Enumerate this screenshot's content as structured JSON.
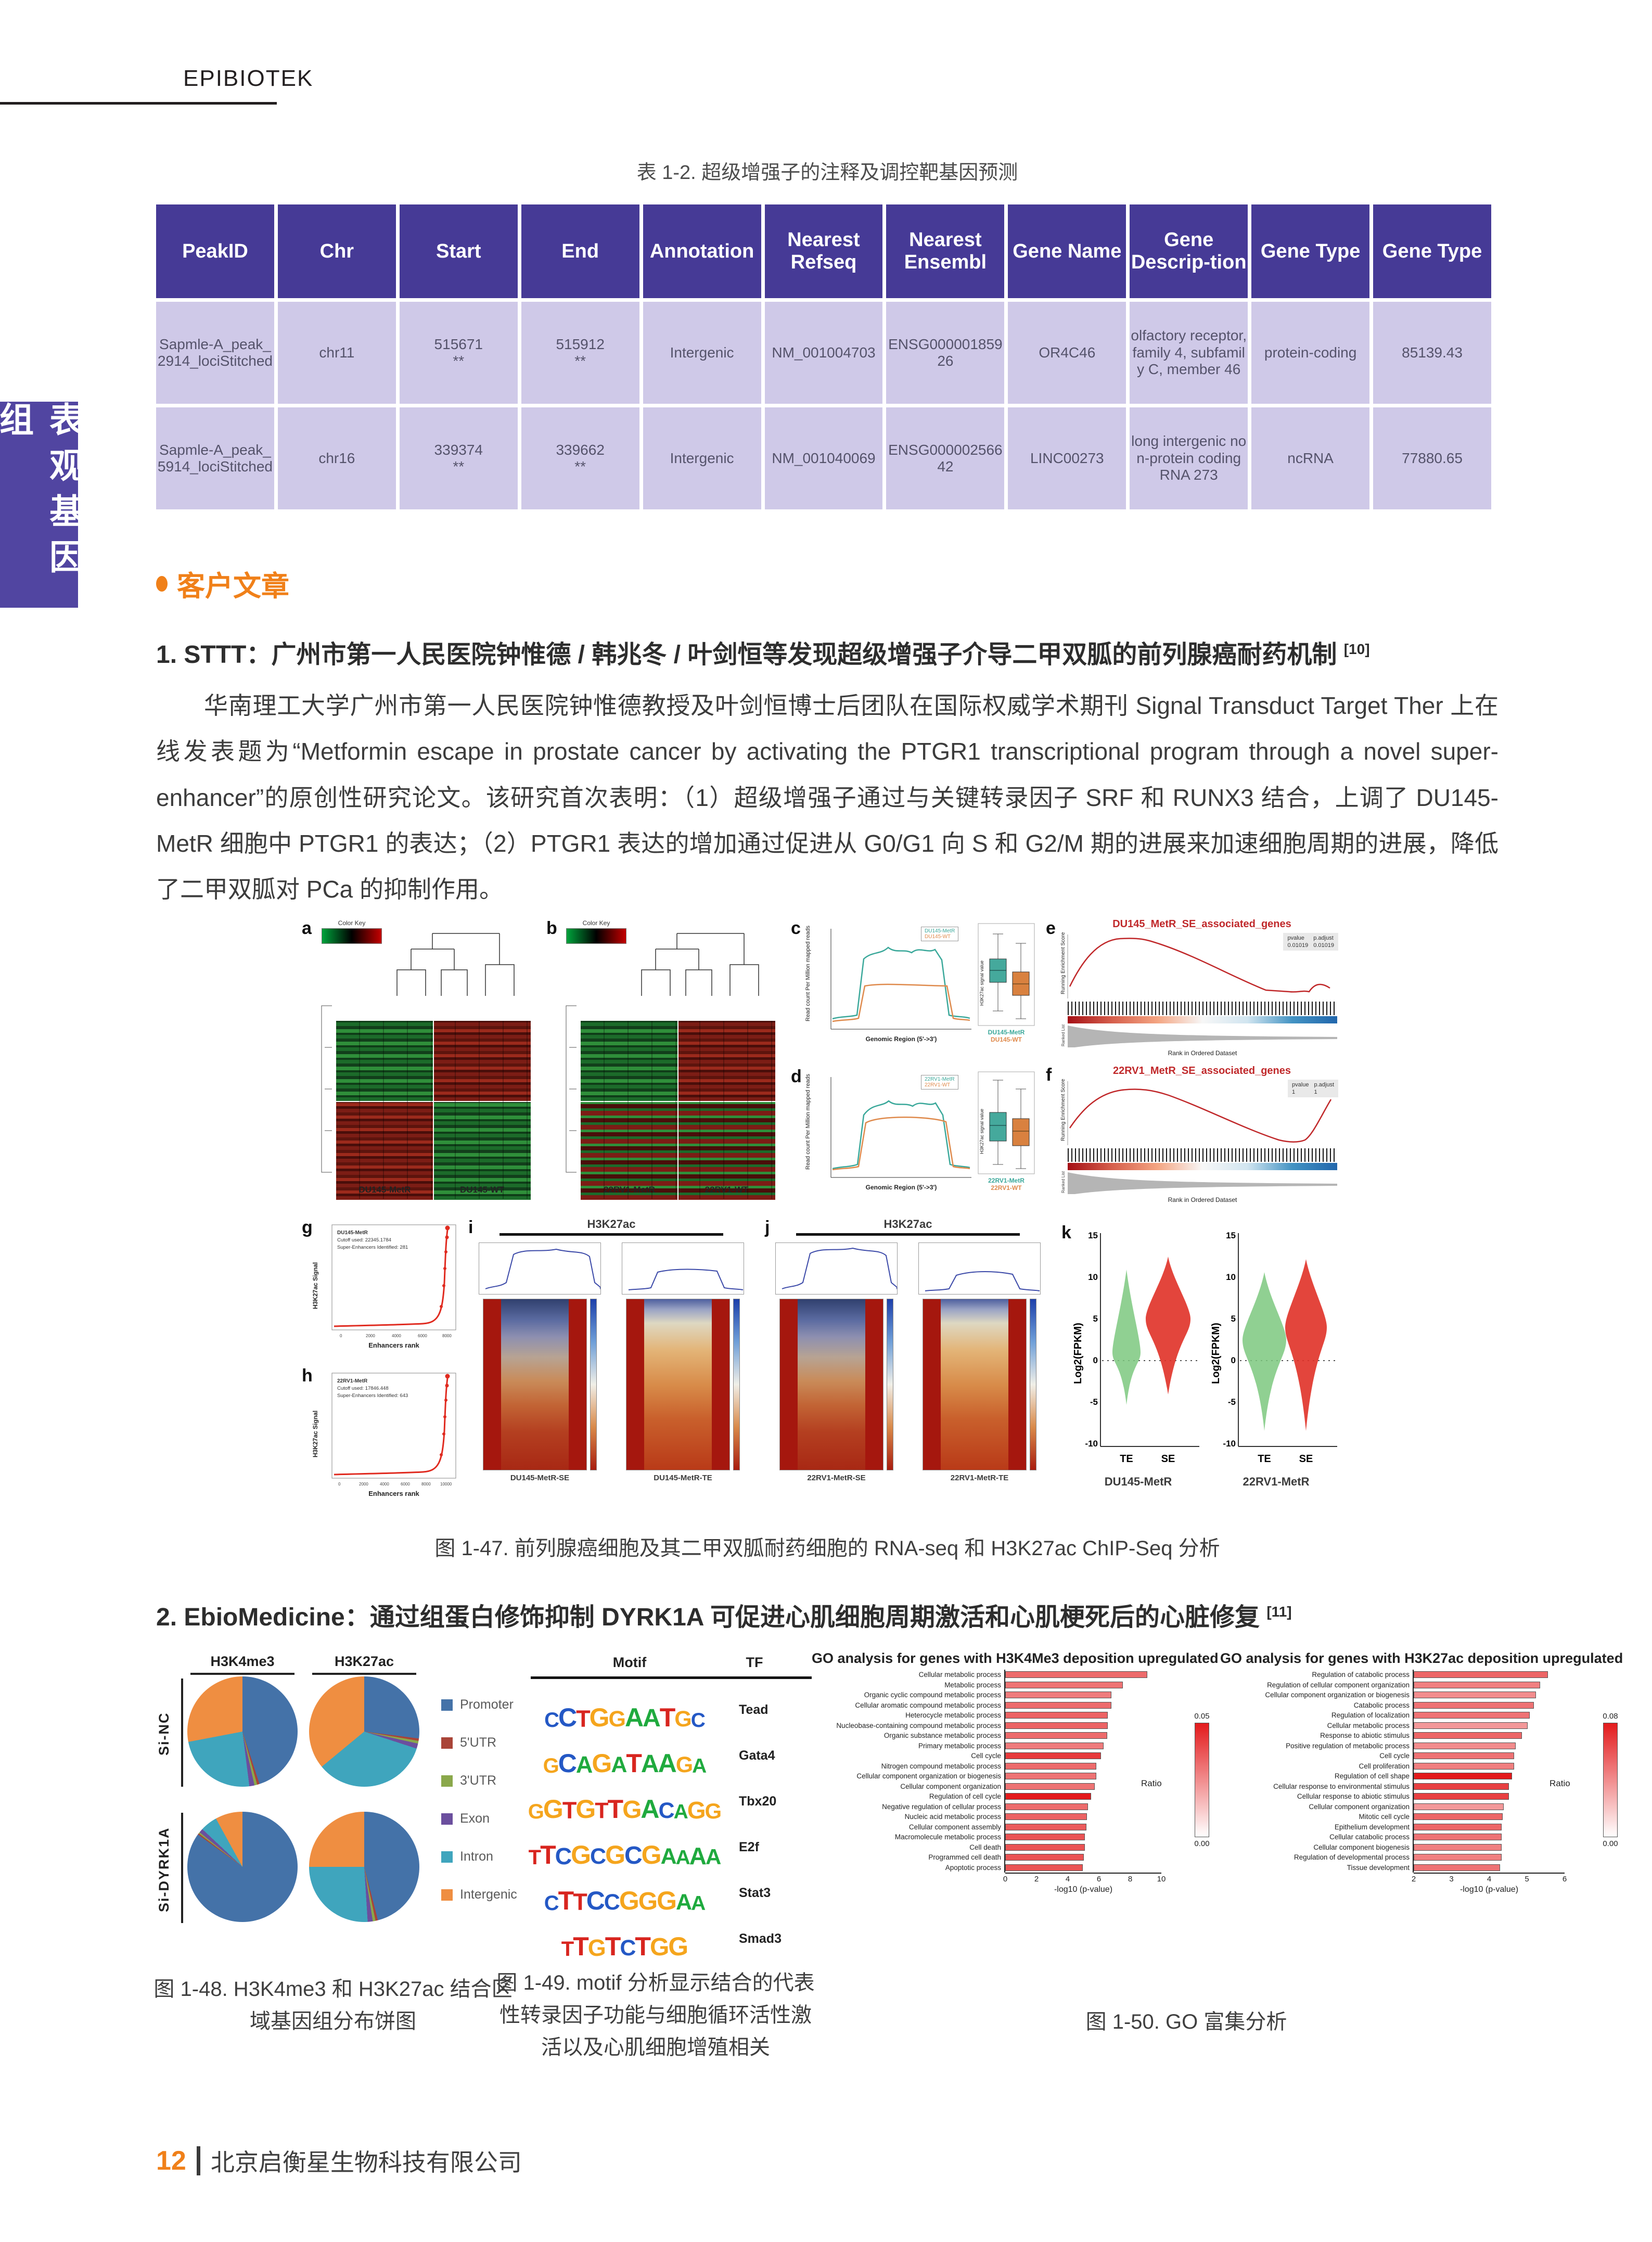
{
  "page": {
    "brand": "EPIBIOTEK",
    "sidebar_tab": "表观基因组",
    "footer": {
      "page_number": "12",
      "company": "北京启衡星生物科技有限公司"
    }
  },
  "table": {
    "title": "表 1-2. 超级增强子的注释及调控靶基因预测",
    "headers": [
      "PeakID",
      "Chr",
      "Start",
      "End",
      "Annotation",
      "Nearest Refseq",
      "Nearest Ensembl",
      "Gene Name",
      "Gene Descrip-tion",
      "Gene Type",
      "Gene Type"
    ],
    "rows": [
      [
        "Sapmle-A_peak_2914_lociStitched",
        "chr11",
        "515671\n**",
        "515912\n**",
        "Intergenic",
        "NM_001004703",
        "ENSG00000185926",
        "OR4C46",
        "olfactory receptor, family 4, subfamily C, member 46",
        "protein-coding",
        "85139.43"
      ],
      [
        "Sapmle-A_peak_5914_lociStitched",
        "chr16",
        "339374\n**",
        "339662\n**",
        "Intergenic",
        "NM_001040069",
        "ENSG00000256642",
        "LINC00273",
        "long intergenic non-protein coding RNA 273",
        "ncRNA",
        "77880.65"
      ]
    ]
  },
  "section": {
    "title": "客户文章"
  },
  "article1": {
    "heading": "1. STTT：广州市第一人民医院钟惟德 / 韩兆冬 / 叶剑恒等发现超级增强子介导二甲双胍的前列腺癌耐药机制",
    "ref": "[10]",
    "paragraph": "华南理工大学广州市第一人民医院钟惟德教授及叶剑恒博士后团队在国际权威学术期刊 Signal Transduct Target Ther 上在线发表题为“Metformin escape in prostate cancer by activating the PTGR1 transcriptional program through a novel super-enhancer”的原创性研究论文。该研究首次表明：（1）超级增强子通过与关键转录因子 SRF 和 RUNX3 结合，上调了 DU145-MetR 细胞中 PTGR1 的表达；（2）PTGR1 表达的增加通过促进从 G0/G1 向 S 和 G2/M 期的进展来加速细胞周期的进展，降低了二甲双胍对 PCa 的抑制作用。"
  },
  "fig147": {
    "caption": "图 1-47. 前列腺癌细胞及其二甲双胍耐药细胞的 RNA-seq 和 H3K27ac ChIP-Seq 分析",
    "color_key_label": "Color Key",
    "panels": {
      "a": {
        "letter": "a",
        "samples": [
          "DU145-MetR",
          "DU145-WT"
        ]
      },
      "b": {
        "letter": "b",
        "samples": [
          "22RV1-MetR",
          "22RV1-WT"
        ]
      },
      "c": {
        "letter": "c",
        "ylabel": "Read count Per Million mapped reads",
        "xlabel": "Genomic Region (5'->3')",
        "legend": [
          "DU145-MetR",
          "DU145-WT"
        ],
        "box_ylabel": "H3K27ac signal value"
      },
      "d": {
        "letter": "d",
        "ylabel": "Read count Per Million mapped reads",
        "xlabel": "Genomic Region (5'->3')",
        "legend": [
          "22RV1-MetR",
          "22RV1-WT"
        ],
        "box_ylabel": "H3K27ac signal value"
      },
      "e": {
        "letter": "e",
        "title": "DU145_MetR_SE_associated_genes",
        "stat_headers": [
          "pvalue",
          "p.adjust"
        ],
        "stat_values": [
          "0.01019",
          "0.01019"
        ],
        "ylabel": "Running Enrichment Score",
        "ylabel2": "Ranked List Metric",
        "xlabel": "Rank in Ordered Dataset"
      },
      "f": {
        "letter": "f",
        "title": "22RV1_MetR_SE_associated_genes",
        "stat_headers": [
          "pvalue",
          "p.adjust"
        ],
        "stat_values": [
          "1",
          "1"
        ],
        "ylabel": "Running Enrichment Score",
        "ylabel2": "Ranked List Metric",
        "xlabel": "Rank in Ordered Dataset"
      },
      "g": {
        "letter": "g",
        "info": [
          "DU145-MetR",
          "Cutoff used: 22345.1784",
          "Super-Enhancers Identified: 281"
        ],
        "ylabel": "H3K27ac Signal",
        "xlabel": "Enhancers rank",
        "xticks": [
          "0",
          "2000",
          "4000",
          "6000",
          "8000"
        ]
      },
      "h": {
        "letter": "h",
        "info": [
          "22RV1-MetR",
          "Cutoff used: 17846.448",
          "Super-Enhancers Identified: 643"
        ],
        "ylabel": "H3K27ac Signal",
        "xlabel": "Enhancers rank",
        "xticks": [
          "0",
          "2000",
          "4000",
          "6000",
          "8000",
          "10000"
        ]
      },
      "i": {
        "letter": "i",
        "title": "H3K27ac",
        "cols": [
          "DU145-MetR-SE",
          "DU145-MetR-TE"
        ]
      },
      "j": {
        "letter": "j",
        "title": "H3K27ac",
        "cols": [
          "22RV1-MetR-SE",
          "22RV1-MetR-TE"
        ]
      },
      "k": {
        "letter": "k",
        "ylabel": "Log2(FPKM)",
        "yticks": [
          "15",
          "10",
          "5",
          "0",
          "-5",
          "-10"
        ],
        "cats": [
          "TE",
          "SE"
        ],
        "groups": [
          "DU145-MetR",
          "22RV1-MetR"
        ]
      }
    }
  },
  "article2": {
    "heading": "2. EbioMedicine：通过组蛋白修饰抑制 DYRK1A 可促进心肌细胞周期激活和心肌梗死后的心脏修复",
    "ref": "[11]"
  },
  "fig148": {
    "col_headers": [
      "H3K4me3",
      "H3K27ac"
    ],
    "row_headers": [
      "Si-NC",
      "Si-DYRK1A"
    ],
    "caption": "图 1-48. H3K4me3 和 H3K27ac 结合区域基因组分布饼图"
  },
  "fig149": {
    "header_motif": "Motif",
    "header_tf": "TF",
    "motifs": [
      {
        "consensus": "CCTGGAATGC",
        "tf": "Tead"
      },
      {
        "consensus": "GCAGATAAGA",
        "tf": "Gata4"
      },
      {
        "consensus": "GGTGTTGACAGG",
        "tf": "Tbx20"
      },
      {
        "consensus": "TTCGCGCGAAAA",
        "tf": "E2f"
      },
      {
        "consensus": "CTTCCGGGAA",
        "tf": "Stat3"
      },
      {
        "consensus": "TTGTCTGG",
        "tf": "Smad3"
      }
    ],
    "caption": "图 1-49. motif 分析显示结合的代表性转录因子功能与细胞循环活性激活以及心肌细胞增殖相关"
  },
  "fig150": {
    "caption": "图 1-50. GO 富集分析"
  },
  "chart_data": {
    "pies": {
      "type": "pie",
      "legend": [
        "Promoter",
        "5'UTR",
        "3'UTR",
        "Exon",
        "Intron",
        "Intergenic"
      ],
      "colors": [
        "#4472a8",
        "#a94438",
        "#8aa84b",
        "#6b4f9e",
        "#3fa5bd",
        "#ef8e41"
      ],
      "charts": [
        {
          "name": "Si-NC H3K4me3",
          "values": [
            45,
            0.7,
            0.8,
            1.5,
            24,
            28
          ]
        },
        {
          "name": "Si-NC H3K27ac",
          "values": [
            27,
            0.7,
            0.8,
            1.5,
            34,
            36
          ]
        },
        {
          "name": "Si-DYRK1A H3K4me3",
          "values": [
            85,
            0.4,
            0.4,
            1.2,
            5,
            8
          ]
        },
        {
          "name": "Si-DYRK1A H3K27ac",
          "values": [
            46,
            0.7,
            0.8,
            1.5,
            26,
            25
          ]
        }
      ]
    },
    "go_h3k4me3": {
      "type": "bar",
      "title": "GO analysis for genes with H3K4Me3 deposition upregulated",
      "xlabel": "-log10 (p-value)",
      "xlim": [
        0,
        10
      ],
      "xticks": [
        0,
        2,
        4,
        6,
        8,
        10
      ],
      "ratio_max": 0.05,
      "legend_max": "0.05",
      "legend_min": "0.00",
      "legend_label": "Ratio",
      "rows": [
        [
          "Cellular metabolic process",
          8.6,
          0.03
        ],
        [
          "Metabolic process",
          7.1,
          0.028
        ],
        [
          "Organic cyclic compound metabolic process",
          6.4,
          0.026
        ],
        [
          "Cellular aromatic compound metabolic process",
          6.4,
          0.03
        ],
        [
          "Heterocycle metabolic process",
          6.2,
          0.032
        ],
        [
          "Nucleobase-containing compound metabolic process",
          6.2,
          0.032
        ],
        [
          "Organic substance metabolic process",
          6.15,
          0.03
        ],
        [
          "Primary metabolic process",
          5.95,
          0.026
        ],
        [
          "Cell cycle",
          5.8,
          0.042
        ],
        [
          "Nitrogen compound metabolic process",
          5.5,
          0.03
        ],
        [
          "Cellular component organization or biogenesis",
          5.5,
          0.028
        ],
        [
          "Cellular component organization",
          5.4,
          0.028
        ],
        [
          "Regulation of cell cycle",
          5.2,
          0.05
        ],
        [
          "Negative regulation of cellular process",
          5.0,
          0.03
        ],
        [
          "Nucleic acid metabolic process",
          4.95,
          0.032
        ],
        [
          "Cellular component assembly",
          4.9,
          0.034
        ],
        [
          "Macromolecule metabolic process",
          4.8,
          0.036
        ],
        [
          "Cell death",
          4.8,
          0.036
        ],
        [
          "Programmed cell death",
          4.75,
          0.036
        ],
        [
          "Apoptotic process",
          4.7,
          0.036
        ]
      ]
    },
    "go_h3k27ac": {
      "type": "bar",
      "title": "GO analysis for genes with H3K27ac deposition upregulated",
      "xlabel": "-log10 (p-value)",
      "xlim": [
        2,
        6
      ],
      "xticks": [
        2,
        3,
        4,
        5,
        6
      ],
      "ratio_max": 0.08,
      "legend_max": "0.08",
      "legend_min": "0.00",
      "legend_label": "Ratio",
      "rows": [
        [
          "Regulation of catabolic process",
          5.35,
          0.05
        ],
        [
          "Regulation of cellular component organization",
          5.15,
          0.04
        ],
        [
          "Cellular component organization or biogenesis",
          5.05,
          0.035
        ],
        [
          "Catabolic process",
          5.0,
          0.045
        ],
        [
          "Regulation of localization",
          4.9,
          0.045
        ],
        [
          "Cellular metabolic process",
          4.85,
          0.03
        ],
        [
          "Response to abiotic stimulus",
          4.7,
          0.05
        ],
        [
          "Positive regulation of metabolic process",
          4.55,
          0.035
        ],
        [
          "Cell cycle",
          4.5,
          0.045
        ],
        [
          "Cell proliferation",
          4.5,
          0.04
        ],
        [
          "Regulation of cell shape",
          4.45,
          0.08
        ],
        [
          "Cellular response to environmental stimulus",
          4.38,
          0.065
        ],
        [
          "Cellular response to abiotic stimulus",
          4.38,
          0.065
        ],
        [
          "Cellular component organization",
          4.25,
          0.03
        ],
        [
          "Mitotic cell cycle",
          4.22,
          0.05
        ],
        [
          "Epithelium development",
          4.2,
          0.05
        ],
        [
          "Cellular catabolic process",
          4.2,
          0.045
        ],
        [
          "Cellular component biogenesis",
          4.2,
          0.04
        ],
        [
          "Regulation of developmental process",
          4.2,
          0.04
        ],
        [
          "Tissue development",
          4.15,
          0.045
        ]
      ]
    },
    "violins": {
      "type": "violin",
      "ylabel": "Log2(FPKM)",
      "ylim": [
        -10,
        15
      ],
      "groups": [
        {
          "name": "DU145-MetR",
          "categories": [
            "TE",
            "SE"
          ],
          "medians": [
            1,
            5
          ]
        },
        {
          "name": "22RV1-MetR",
          "categories": [
            "TE",
            "SE"
          ],
          "medians": [
            2.5,
            4
          ]
        }
      ]
    }
  }
}
